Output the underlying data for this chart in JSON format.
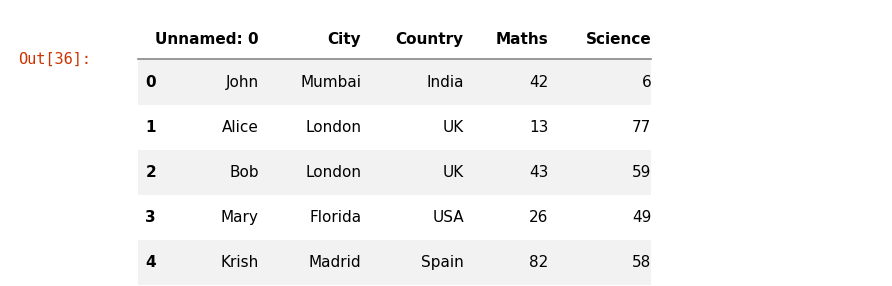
{
  "out_label": "Out[36]:",
  "out_label_color": "#cc3300",
  "columns": [
    "Unnamed: 0",
    "City",
    "Country",
    "Maths",
    "Science"
  ],
  "index": [
    0,
    1,
    2,
    3,
    4
  ],
  "rows": [
    [
      "John",
      "Mumbai",
      "India",
      42,
      6
    ],
    [
      "Alice",
      "London",
      "UK",
      13,
      77
    ],
    [
      "Bob",
      "London",
      "UK",
      43,
      59
    ],
    [
      "Mary",
      "Florida",
      "USA",
      26,
      49
    ],
    [
      "Krish",
      "Madrid",
      "Spain",
      82,
      58
    ]
  ],
  "row_bg_even": "#f2f2f2",
  "row_bg_odd": "#ffffff",
  "text_color": "#000000",
  "header_line_color": "#888888",
  "background_color": "#ffffff",
  "header_fontsize": 11,
  "cell_fontsize": 11
}
